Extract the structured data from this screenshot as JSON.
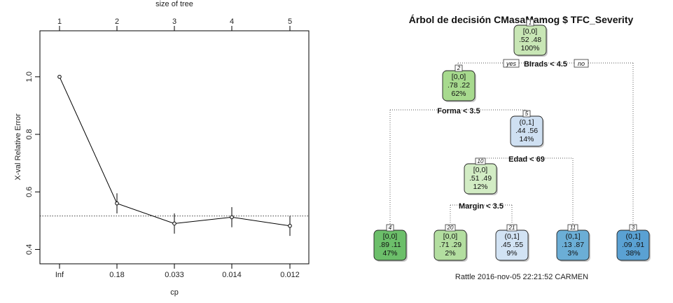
{
  "chart_data": [
    {
      "type": "line",
      "top_axis_label": "size of tree",
      "top_ticks": [
        "1",
        "2",
        "3",
        "4",
        "5"
      ],
      "xlabel": "cp",
      "ylabel": "X-val Relative Error",
      "categories": [
        "Inf",
        "0.18",
        "0.033",
        "0.014",
        "0.012"
      ],
      "values": [
        1.0,
        0.56,
        0.49,
        0.512,
        0.482
      ],
      "error_bars": [
        null,
        [
          0.525,
          0.595
        ],
        [
          0.455,
          0.525
        ],
        [
          0.477,
          0.547
        ],
        [
          0.447,
          0.517
        ]
      ],
      "yticks": [
        "0.4",
        "0.6",
        "0.8",
        "1.0"
      ],
      "ylim": [
        0.35,
        1.16
      ],
      "reference_line": 0.516,
      "grid": false
    },
    {
      "type": "decision-tree",
      "title": "Árbol de decisión CMasaMamog $ TFC_Severity",
      "footer": "Rattle 2016-nov-05 22:21:52 CARMEN",
      "nodes": [
        {
          "id": "1",
          "label": "[0,0]",
          "probs": ".52  .48",
          "pct": "100%",
          "color": "#c8e6b5"
        },
        {
          "id": "2",
          "label": "[0,0]",
          "probs": ".78  .22",
          "pct": "62%",
          "color": "#a7da8e"
        },
        {
          "id": "5",
          "label": "(0,1]",
          "probs": ".44  .56",
          "pct": "14%",
          "color": "#cfe0f2"
        },
        {
          "id": "10",
          "label": "[0,0]",
          "probs": ".51  .49",
          "pct": "12%",
          "color": "#d2ecc4"
        },
        {
          "id": "4",
          "label": "[0,0]",
          "probs": ".89  .11",
          "pct": "47%",
          "color": "#6cbf6a"
        },
        {
          "id": "20",
          "label": "[0,0]",
          "probs": ".71  .29",
          "pct": "2%",
          "color": "#b3dea0"
        },
        {
          "id": "21",
          "label": "(0,1]",
          "probs": ".45  .55",
          "pct": "9%",
          "color": "#d2e3f4"
        },
        {
          "id": "11",
          "label": "(0,1]",
          "probs": ".13  .87",
          "pct": "3%",
          "color": "#6baed6"
        },
        {
          "id": "3",
          "label": "(0,1]",
          "probs": ".09  .91",
          "pct": "38%",
          "color": "#5aa1d3"
        }
      ],
      "splits": [
        {
          "id": "root",
          "text": "BIrads < 4.5",
          "yes": "yes",
          "no": "no"
        },
        {
          "id": "n2",
          "text": "Forma < 3.5"
        },
        {
          "id": "n5",
          "text": "Edad < 69"
        },
        {
          "id": "n10",
          "text": "Margin < 3.5"
        }
      ]
    }
  ]
}
